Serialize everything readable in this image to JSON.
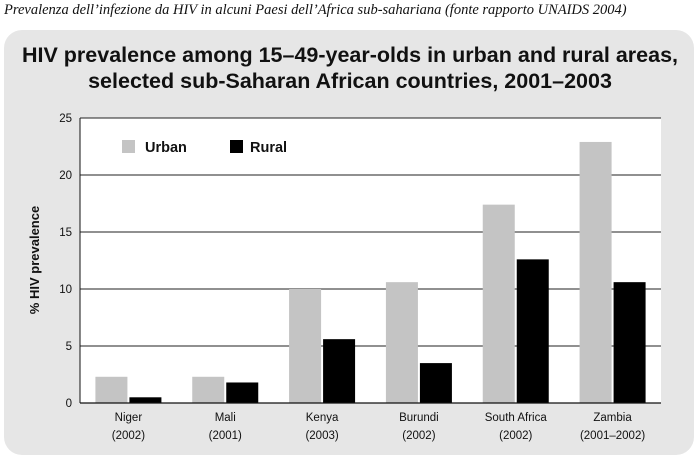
{
  "caption": "Prevalenza dell’infezione da HIV in alcuni Paesi dell’Africa sub-sahariana (fonte rapporto UNAIDS 2004)",
  "chart_data": {
    "type": "bar",
    "title_lines": [
      "HIV prevalence among 15–49-year-olds in urban and rural areas,",
      "selected sub-Saharan African countries, 2001–2003"
    ],
    "title": "HIV prevalence among 15–49-year-olds in urban and rural areas, selected sub-Saharan African countries, 2001–2003",
    "xlabel": "",
    "ylabel": "% HIV prevalence",
    "ylim": [
      0,
      25
    ],
    "yticks": [
      0,
      5,
      10,
      15,
      20,
      25
    ],
    "grid": true,
    "legend_position": "top-left",
    "categories": [
      {
        "name": "Niger",
        "year": "(2002)"
      },
      {
        "name": "Mali",
        "year": "(2001)"
      },
      {
        "name": "Kenya",
        "year": "(2003)"
      },
      {
        "name": "Burundi",
        "year": "(2002)"
      },
      {
        "name": "South Africa",
        "year": "(2002)"
      },
      {
        "name": "Zambia",
        "year": "(2001–2002)"
      }
    ],
    "series": [
      {
        "name": "Urban",
        "color": "#c4c4c4",
        "values": [
          2.3,
          2.3,
          10.0,
          10.6,
          17.4,
          22.9
        ]
      },
      {
        "name": "Rural",
        "color": "#000000",
        "values": [
          0.5,
          1.8,
          5.6,
          3.5,
          12.6,
          10.6
        ]
      }
    ]
  }
}
